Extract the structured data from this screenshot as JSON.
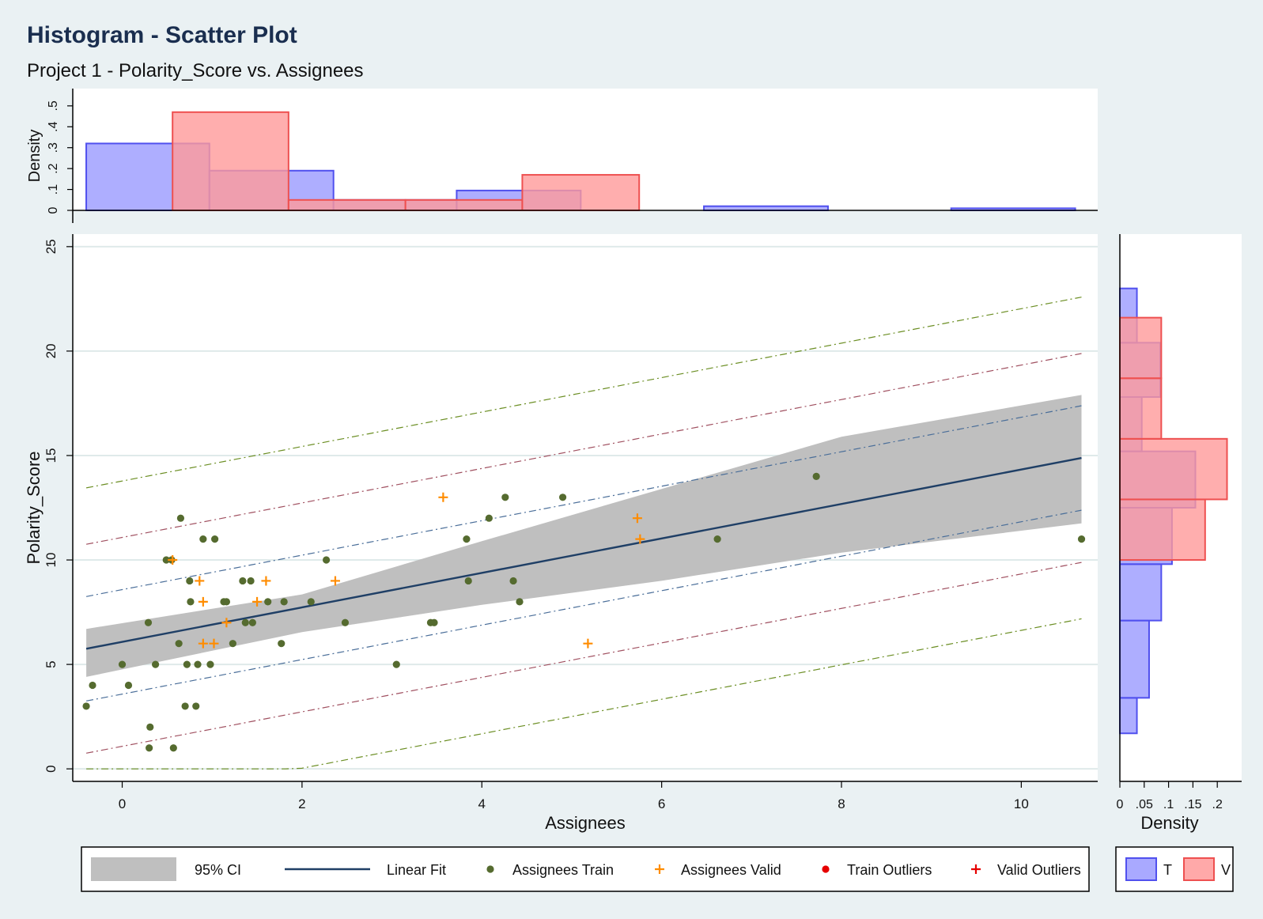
{
  "title": "Histogram - Scatter Plot",
  "subtitle": "Project 1 - Polarity_Score vs. Assignees",
  "colors": {
    "background": "#eaf1f3",
    "train": "#556b2f",
    "valid": "#ff8c00",
    "outlier": "#e60000",
    "fit": "#1f3f66",
    "ci": "#bfbfbf",
    "hist_t_fill": "#9a9aff",
    "hist_t_edge": "#5050ee",
    "hist_v_fill": "#ff9a9a",
    "hist_v_edge": "#ee5050",
    "band_inner": "#4a6e99",
    "band_mid": "#a05060",
    "band_outer": "#6b8e23"
  },
  "chart_data": [
    {
      "id": "scatter",
      "type": "scatter",
      "xlabel": "Assignees",
      "ylabel": "Polarity_Score",
      "xlim": [
        -0.55,
        10.85
      ],
      "ylim": [
        -0.6,
        25.6
      ],
      "xticks": [
        "0",
        "2",
        "4",
        "6",
        "8",
        "10"
      ],
      "xtick_values": [
        0,
        2,
        4,
        6,
        8,
        10
      ],
      "yticks": [
        "0",
        "5",
        "10",
        "15",
        "20",
        "25"
      ],
      "ytick_values": [
        0,
        5,
        10,
        15,
        20,
        25
      ],
      "grid": true,
      "series": [
        {
          "name": "Assignees Train",
          "marker": "dot",
          "points": [
            [
              -0.4,
              3
            ],
            [
              -0.33,
              4
            ],
            [
              0.0,
              5
            ],
            [
              0.07,
              4
            ],
            [
              0.29,
              7
            ],
            [
              0.31,
              2
            ],
            [
              0.3,
              1
            ],
            [
              0.37,
              5
            ],
            [
              0.49,
              10
            ],
            [
              0.55,
              10
            ],
            [
              0.57,
              1
            ],
            [
              0.63,
              6
            ],
            [
              0.65,
              12
            ],
            [
              0.7,
              3
            ],
            [
              0.72,
              5
            ],
            [
              0.75,
              9
            ],
            [
              0.76,
              8
            ],
            [
              0.82,
              3
            ],
            [
              0.84,
              5
            ],
            [
              0.9,
              11
            ],
            [
              0.98,
              5
            ],
            [
              1.03,
              11
            ],
            [
              1.13,
              8
            ],
            [
              1.16,
              8
            ],
            [
              1.23,
              6
            ],
            [
              1.34,
              9
            ],
            [
              1.37,
              7
            ],
            [
              1.43,
              9
            ],
            [
              1.45,
              7
            ],
            [
              1.62,
              8
            ],
            [
              1.77,
              6
            ],
            [
              1.8,
              8
            ],
            [
              2.1,
              8
            ],
            [
              2.27,
              10
            ],
            [
              2.48,
              7
            ],
            [
              3.05,
              5
            ],
            [
              3.43,
              7
            ],
            [
              3.47,
              7
            ],
            [
              3.83,
              11
            ],
            [
              3.85,
              9
            ],
            [
              4.08,
              12
            ],
            [
              4.26,
              13
            ],
            [
              4.35,
              9
            ],
            [
              4.42,
              8
            ],
            [
              4.9,
              13
            ],
            [
              6.62,
              11
            ],
            [
              7.72,
              14
            ],
            [
              10.67,
              11
            ]
          ]
        },
        {
          "name": "Assignees Valid",
          "marker": "plus",
          "points": [
            [
              0.56,
              10
            ],
            [
              0.86,
              9
            ],
            [
              0.9,
              8
            ],
            [
              0.9,
              6
            ],
            [
              1.02,
              6
            ],
            [
              1.16,
              7
            ],
            [
              1.5,
              8
            ],
            [
              1.6,
              9
            ],
            [
              2.37,
              9
            ],
            [
              3.57,
              13
            ],
            [
              5.18,
              6
            ],
            [
              5.73,
              12
            ],
            [
              5.76,
              11
            ]
          ]
        },
        {
          "name": "Train Outliers",
          "marker": "dot",
          "points": []
        },
        {
          "name": "Valid Outliers",
          "marker": "plus",
          "points": []
        }
      ],
      "fit": {
        "name": "Linear Fit",
        "intercept": 6.08,
        "slope": 0.825,
        "x_range": [
          -0.4,
          10.67
        ]
      },
      "ci": {
        "name": "95% CI",
        "upper": [
          [
            -0.4,
            6.7
          ],
          [
            2.0,
            8.35
          ],
          [
            4.0,
            10.9
          ],
          [
            6.0,
            13.4
          ],
          [
            8.0,
            15.9
          ],
          [
            10.67,
            17.9
          ]
        ],
        "lower": [
          [
            -0.4,
            4.4
          ],
          [
            2.0,
            6.55
          ],
          [
            4.0,
            7.85
          ],
          [
            6.0,
            9.0
          ],
          [
            8.0,
            10.35
          ],
          [
            10.67,
            11.75
          ]
        ]
      },
      "prediction_bands": [
        {
          "offset": 2.5,
          "style": "inner"
        },
        {
          "offset": 5.0,
          "style": "mid"
        },
        {
          "offset": 7.7,
          "style": "outer"
        }
      ]
    },
    {
      "id": "top-histogram",
      "type": "bar",
      "ylabel": "Density",
      "yticks": [
        "0",
        ".1",
        ".2",
        ".3",
        ".4",
        ".5"
      ],
      "ytick_values": [
        0,
        0.1,
        0.2,
        0.3,
        0.4,
        0.5
      ],
      "ylim": [
        0,
        0.56
      ],
      "series": [
        {
          "name": "T",
          "bins": [
            [
              -0.4,
              0.97,
              0.32
            ],
            [
              0.97,
              2.35,
              0.19
            ],
            [
              2.35,
              3.72,
              0.05
            ],
            [
              3.72,
              5.1,
              0.095
            ],
            [
              6.47,
              7.85,
              0.02
            ],
            [
              9.22,
              10.6,
              0.01
            ]
          ]
        },
        {
          "name": "V",
          "bins": [
            [
              0.56,
              1.85,
              0.47
            ],
            [
              1.85,
              3.15,
              0.05
            ],
            [
              3.15,
              4.45,
              0.05
            ],
            [
              4.45,
              5.75,
              0.17
            ]
          ]
        }
      ]
    },
    {
      "id": "right-histogram",
      "type": "bar",
      "xlabel": "Density",
      "xticks": [
        "0",
        ".05",
        ".1",
        ".15",
        ".2"
      ],
      "xtick_values": [
        0,
        0.05,
        0.1,
        0.15,
        0.2
      ],
      "xlim": [
        0,
        0.25
      ],
      "series": [
        {
          "name": "T",
          "bins": [
            [
              1.7,
              3.4,
              0.035
            ],
            [
              3.4,
              7.1,
              0.06
            ],
            [
              7.1,
              9.8,
              0.085
            ],
            [
              9.8,
              12.5,
              0.107
            ],
            [
              12.5,
              15.2,
              0.155
            ],
            [
              15.2,
              17.8,
              0.045
            ],
            [
              17.8,
              20.4,
              0.083
            ],
            [
              20.4,
              23.0,
              0.035
            ]
          ]
        },
        {
          "name": "V",
          "bins": [
            [
              10.0,
              12.9,
              0.175
            ],
            [
              12.9,
              15.8,
              0.22
            ],
            [
              15.8,
              18.7,
              0.085
            ],
            [
              18.7,
              21.6,
              0.085
            ]
          ]
        }
      ]
    }
  ],
  "legend": {
    "items": [
      {
        "label": "95% CI",
        "symbol": "ci-swatch"
      },
      {
        "label": "Linear Fit",
        "symbol": "fit-line"
      },
      {
        "label": "Assignees Train",
        "symbol": "train-dot"
      },
      {
        "label": "Assignees Valid",
        "symbol": "valid-plus"
      },
      {
        "label": "Train Outliers",
        "symbol": "outlier-dot"
      },
      {
        "label": "Valid Outliers",
        "symbol": "outlier-plus"
      }
    ],
    "hist_items": [
      {
        "label": "T",
        "symbol": "hist-t-swatch"
      },
      {
        "label": "V",
        "symbol": "hist-v-swatch"
      }
    ]
  }
}
